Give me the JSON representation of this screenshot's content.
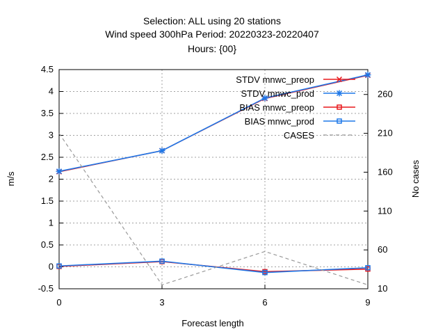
{
  "chart_data": {
    "type": "line",
    "title": [
      "Selection: ALL using    20 stations",
      "Wind speed 300hPa   Period: 20220323-20220407",
      "Hours: {00}"
    ],
    "xlabel": "Forecast length",
    "ylabel": "m/s",
    "y2label": "No cases",
    "x": [
      0,
      3,
      6,
      9
    ],
    "xticks": [
      "0",
      "3",
      "6",
      "9"
    ],
    "xlim": [
      0,
      9
    ],
    "ylim": [
      -0.5,
      4.5
    ],
    "yticks": [
      "-0.5",
      "0",
      "0.5",
      "1",
      "1.5",
      "2",
      "2.5",
      "3",
      "3.5",
      "4",
      "4.5"
    ],
    "y2lim": [
      10,
      292
    ],
    "y2ticks": [
      "10",
      "60",
      "110",
      "160",
      "210",
      "260"
    ],
    "grid": true,
    "legend_position": "top-right",
    "series": [
      {
        "name": "STDV mnwc_preop",
        "axis": "y1",
        "color": "#e8181c",
        "marker": "x",
        "dash": "solid",
        "values": [
          2.17,
          2.65,
          3.84,
          4.37
        ]
      },
      {
        "name": "STDV mnwc_prod",
        "axis": "y1",
        "color": "#1f78e8",
        "marker": "star",
        "dash": "solid",
        "values": [
          2.18,
          2.65,
          3.85,
          4.38
        ]
      },
      {
        "name": "BIAS mnwc_preop",
        "axis": "y1",
        "color": "#e8181c",
        "marker": "square",
        "dash": "solid",
        "values": [
          0.01,
          0.12,
          -0.11,
          -0.05
        ]
      },
      {
        "name": "BIAS mnwc_prod",
        "axis": "y1",
        "color": "#1f78e8",
        "marker": "square",
        "dash": "solid",
        "values": [
          0.02,
          0.13,
          -0.13,
          -0.02
        ]
      },
      {
        "name": "CASES",
        "axis": "y2",
        "color": "#999999",
        "marker": "none",
        "dash": "dashed",
        "values": [
          210,
          15,
          58,
          15
        ]
      }
    ]
  }
}
